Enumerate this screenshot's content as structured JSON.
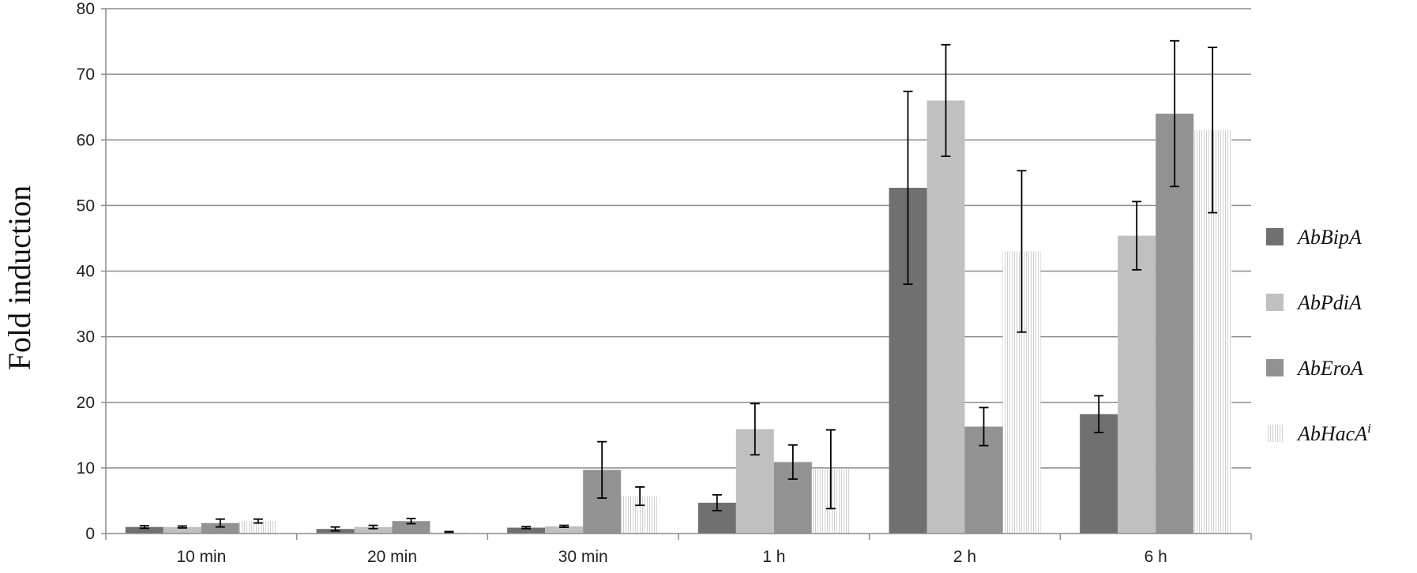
{
  "chart_data": {
    "type": "bar",
    "categories": [
      "10 min",
      "20 min",
      "30 min",
      "1 h",
      "2 h",
      "6 h"
    ],
    "ylabel": "Fold induction",
    "xlabel": "",
    "ylim": [
      0,
      80
    ],
    "yticks": [
      "0",
      "10",
      "20",
      "30",
      "40",
      "50",
      "60",
      "70",
      "80"
    ],
    "grid": true,
    "legend_position": "right",
    "series": [
      {
        "name": "AbBipA",
        "values": [
          1.0,
          0.7,
          0.9,
          4.7,
          52.7,
          18.2
        ],
        "errors": [
          0.2,
          0.3,
          0.15,
          1.2,
          14.7,
          2.8
        ],
        "color": "#707070",
        "pattern": "solid"
      },
      {
        "name": "AbPdiA",
        "values": [
          1.0,
          1.0,
          1.1,
          15.9,
          66.0,
          45.4
        ],
        "errors": [
          0.15,
          0.25,
          0.15,
          3.9,
          8.5,
          5.2
        ],
        "color": "#c0c0c0",
        "pattern": "solid"
      },
      {
        "name": "AbEroA",
        "values": [
          1.6,
          1.9,
          9.7,
          10.9,
          16.3,
          64.0
        ],
        "errors": [
          0.6,
          0.4,
          4.3,
          2.6,
          2.9,
          11.1
        ],
        "color": "#929292",
        "pattern": "solid"
      },
      {
        "name": "AbHacA",
        "name_superscript": "i",
        "values": [
          1.9,
          0.2,
          5.7,
          9.8,
          43.0,
          61.5
        ],
        "errors": [
          0.3,
          0.1,
          1.4,
          6.0,
          12.3,
          12.6
        ],
        "color": "#d8d8d8",
        "pattern": "vertical-lines"
      }
    ]
  }
}
